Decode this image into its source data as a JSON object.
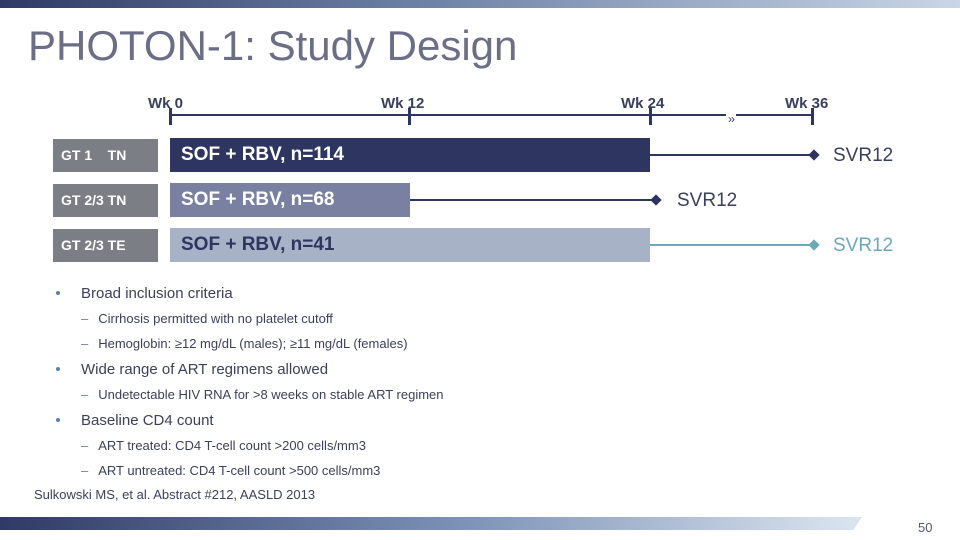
{
  "title": "PHOTON-1: Study Design",
  "colors": {
    "arm1": "#2e3560",
    "arm2": "#7a80a2",
    "arm3": "#a8b2c6",
    "svr_teal": "#6aa9ba",
    "label_gray": "#7b7e85",
    "axis": "#2d3660"
  },
  "timeline": {
    "weeks": [
      "Wk 0",
      "Wk 12",
      "Wk 24",
      "Wk 36"
    ],
    "break_mark": "››"
  },
  "arms": [
    {
      "group": "GT 1    TN",
      "treatment": "SOF + RBV, n=114",
      "endpoint": "SVR12"
    },
    {
      "group": "GT 2/3 TN",
      "treatment": "SOF + RBV, n=68",
      "endpoint": "SVR12"
    },
    {
      "group": "GT 2/3 TE",
      "treatment": "SOF + RBV, n=41",
      "endpoint": "SVR12"
    }
  ],
  "bullets": [
    {
      "text": "Broad inclusion criteria",
      "sub": [
        "Cirrhosis permitted with no platelet cutoff",
        "Hemoglobin: ≥12 mg/dL (males); ≥11 mg/dL (females)"
      ]
    },
    {
      "text": "Wide range of ART regimens allowed",
      "sub": [
        "Undetectable HIV RNA for >8 weeks on stable ART regimen"
      ]
    },
    {
      "text": "Baseline CD4 count",
      "sub": [
        "ART treated:  CD4 T-cell count >200 cells/mm3",
        "ART untreated: CD4 T-cell count >500 cells/mm3"
      ]
    }
  ],
  "citation": "Sulkowski MS, et al. Abstract #212, AASLD 2013",
  "page_number": "50"
}
